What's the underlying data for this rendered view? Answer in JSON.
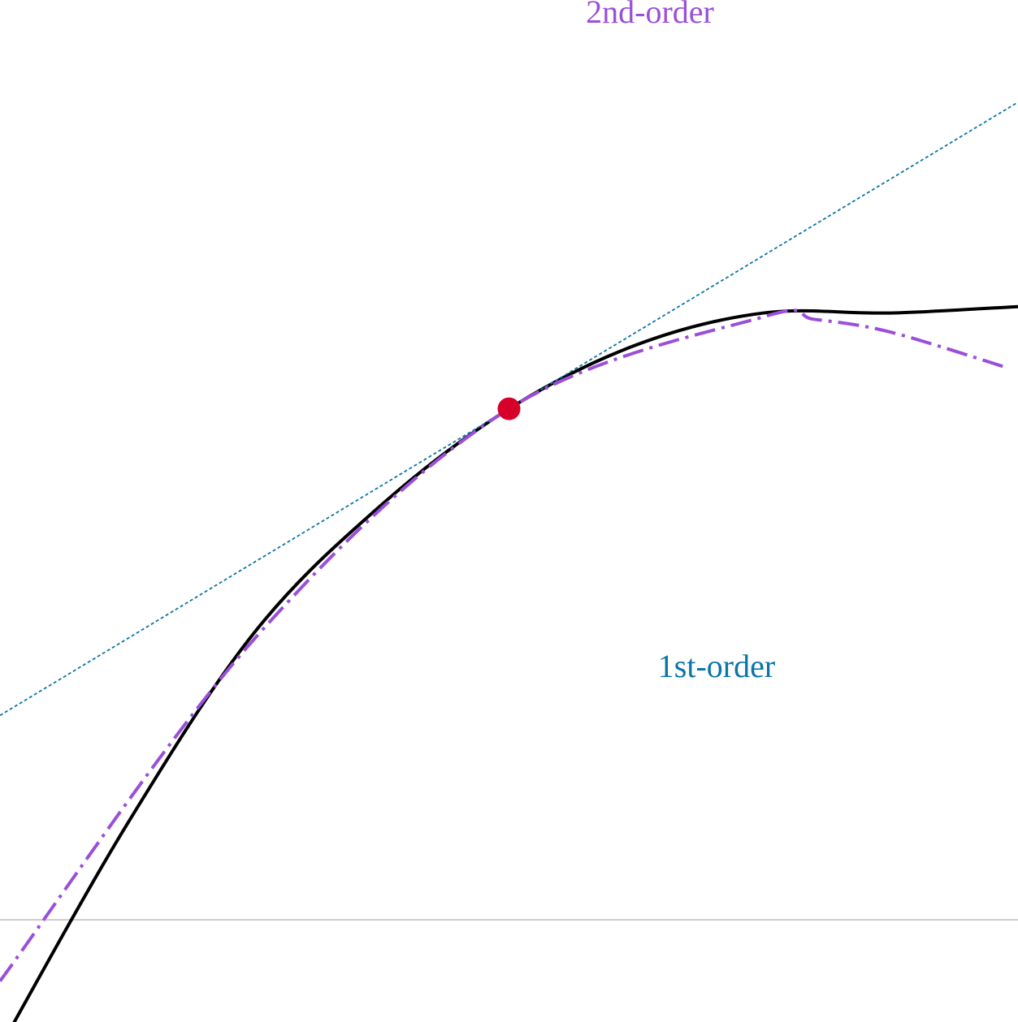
{
  "chart_data": {
    "type": "line",
    "title": "",
    "xlabel": "",
    "ylabel": "",
    "xlim": [
      0,
      2
    ],
    "ylim": [
      -0.2,
      1.8
    ],
    "grid": false,
    "baseline": {
      "y": 0,
      "color": "#cccccc"
    },
    "point": {
      "x": 1,
      "y": 1,
      "color": "#d6002b"
    },
    "series": [
      {
        "key": "curve",
        "label": "",
        "color": "#000000",
        "style": "solid",
        "points": [
          [
            0,
            -0.25
          ],
          [
            0.25,
            0.1875
          ],
          [
            0.5,
            0.5625
          ],
          [
            0.75,
            0.8125
          ],
          [
            1,
            1
          ],
          [
            1.25,
            1.125
          ],
          [
            1.5,
            1.1875
          ],
          [
            1.75,
            1.1875
          ],
          [
            2,
            1.2
          ]
        ]
      },
      {
        "key": "first_order",
        "label": "1st-order",
        "color": "#0b74a8",
        "style": "dotted",
        "points": [
          [
            0,
            0.4
          ],
          [
            2,
            1.6
          ]
        ]
      },
      {
        "key": "second_order",
        "label": "2nd-order",
        "color": "#9b4fd9",
        "style": "dashdot",
        "points": [
          [
            0,
            -0.12
          ],
          [
            0.5,
            0.55
          ],
          [
            1,
            1
          ],
          [
            1.5,
            1.18
          ],
          [
            1.6,
            1.175
          ],
          [
            1.75,
            1.15
          ],
          [
            1.98,
            1.08
          ]
        ]
      }
    ]
  }
}
